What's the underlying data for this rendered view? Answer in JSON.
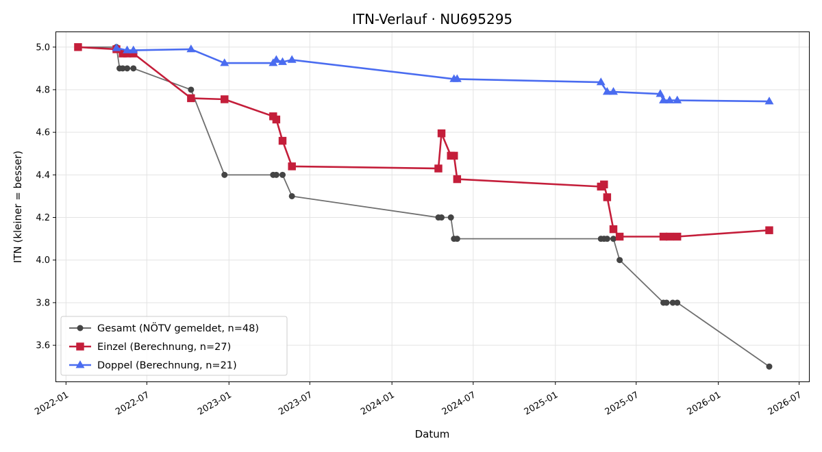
{
  "chart_data": {
    "type": "line",
    "title": "ITN-Verlauf · NU695295",
    "xlabel": "Datum",
    "ylabel": "ITN  (kleiner = besser)",
    "x_ticks": [
      "2022-01",
      "2022-07",
      "2023-01",
      "2023-07",
      "2024-01",
      "2024-07",
      "2025-01",
      "2025-07",
      "2026-01",
      "2026-07"
    ],
    "y_ticks": [
      3.6,
      3.8,
      4.0,
      4.2,
      4.4,
      4.6,
      4.8,
      5.0
    ],
    "xlim": [
      "2021-12-10",
      "2026-07-23"
    ],
    "ylim": [
      3.43,
      5.07
    ],
    "grid": true,
    "legend_position": "lower-left",
    "series": [
      {
        "name": "Gesamt (NÖTV gemeldet, n=48)",
        "color": "#555555",
        "marker": "circle",
        "points": [
          [
            "2022-01-28",
            5.0
          ],
          [
            "2022-04-24",
            5.0
          ],
          [
            "2022-05-01",
            4.9
          ],
          [
            "2022-05-08",
            4.9
          ],
          [
            "2022-05-18",
            4.9
          ],
          [
            "2022-06-01",
            4.9
          ],
          [
            "2022-10-08",
            4.8
          ],
          [
            "2022-12-22",
            4.4
          ],
          [
            "2023-04-10",
            4.4
          ],
          [
            "2023-04-17",
            4.4
          ],
          [
            "2023-05-01",
            4.4
          ],
          [
            "2023-05-22",
            4.3
          ],
          [
            "2024-04-14",
            4.2
          ],
          [
            "2024-04-21",
            4.2
          ],
          [
            "2024-05-12",
            4.2
          ],
          [
            "2024-05-19",
            4.1
          ],
          [
            "2024-05-26",
            4.1
          ],
          [
            "2025-04-13",
            4.1
          ],
          [
            "2025-04-20",
            4.1
          ],
          [
            "2025-04-27",
            4.1
          ],
          [
            "2025-05-11",
            4.1
          ],
          [
            "2025-05-25",
            4.0
          ],
          [
            "2025-08-31",
            3.8
          ],
          [
            "2025-09-07",
            3.8
          ],
          [
            "2025-09-21",
            3.8
          ],
          [
            "2025-10-01",
            3.8
          ],
          [
            "2026-04-25",
            3.5
          ]
        ]
      },
      {
        "name": "Einzel (Berechnung, n=27)",
        "color": "#c41e3a",
        "marker": "square",
        "points": [
          [
            "2022-01-28",
            5.0
          ],
          [
            "2022-04-24",
            4.99
          ],
          [
            "2022-05-08",
            4.97
          ],
          [
            "2022-05-18",
            4.97
          ],
          [
            "2022-06-01",
            4.97
          ],
          [
            "2022-10-08",
            4.76
          ],
          [
            "2022-12-22",
            4.755
          ],
          [
            "2023-04-10",
            4.675
          ],
          [
            "2023-04-17",
            4.66
          ],
          [
            "2023-05-01",
            4.56
          ],
          [
            "2023-05-22",
            4.44
          ],
          [
            "2024-04-14",
            4.43
          ],
          [
            "2024-04-21",
            4.595
          ],
          [
            "2024-05-12",
            4.49
          ],
          [
            "2024-05-19",
            4.49
          ],
          [
            "2024-05-26",
            4.38
          ],
          [
            "2025-04-13",
            4.345
          ],
          [
            "2025-04-20",
            4.355
          ],
          [
            "2025-04-27",
            4.295
          ],
          [
            "2025-05-11",
            4.145
          ],
          [
            "2025-05-25",
            4.11
          ],
          [
            "2025-08-31",
            4.11
          ],
          [
            "2025-09-14",
            4.11
          ],
          [
            "2025-10-01",
            4.11
          ],
          [
            "2026-04-25",
            4.14
          ]
        ]
      },
      {
        "name": "Doppel (Berechnung, n=21)",
        "color": "#4a6cf0",
        "marker": "triangle",
        "points": [
          [
            "2022-04-24",
            4.995
          ],
          [
            "2022-05-18",
            4.985
          ],
          [
            "2022-06-01",
            4.985
          ],
          [
            "2022-10-08",
            4.99
          ],
          [
            "2022-12-22",
            4.925
          ],
          [
            "2023-04-10",
            4.925
          ],
          [
            "2023-04-17",
            4.94
          ],
          [
            "2023-05-01",
            4.93
          ],
          [
            "2023-05-22",
            4.94
          ],
          [
            "2024-05-19",
            4.85
          ],
          [
            "2024-05-26",
            4.85
          ],
          [
            "2025-04-13",
            4.835
          ],
          [
            "2025-04-27",
            4.79
          ],
          [
            "2025-05-11",
            4.79
          ],
          [
            "2025-08-24",
            4.78
          ],
          [
            "2025-08-31",
            4.75
          ],
          [
            "2025-09-14",
            4.75
          ],
          [
            "2025-10-01",
            4.75
          ],
          [
            "2026-04-25",
            4.745
          ]
        ]
      }
    ]
  }
}
